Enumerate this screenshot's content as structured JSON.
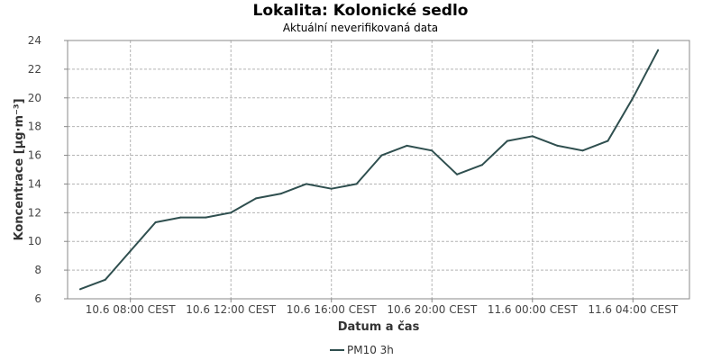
{
  "title": "Lokalita: Kolonické sedlo",
  "subtitle": "Aktuální neverifikovaná data",
  "colors": {
    "series": "#2f4f4f",
    "grid": "#b4b4b4",
    "axis": "#888888"
  },
  "chart_data": {
    "type": "line",
    "title": "Lokalita: Kolonické sedlo",
    "subtitle": "Aktuální neverifikovaná data",
    "xlabel": "Datum a čas",
    "ylabel": "Koncentrace [µg·m⁻³]",
    "ylim": [
      6,
      24
    ],
    "yticks": [
      6,
      8,
      10,
      12,
      14,
      16,
      18,
      20,
      22,
      24
    ],
    "xlim": [
      "2023-06-10 05:30",
      "2023-06-11 06:15"
    ],
    "xticks": [
      {
        "t": "2023-06-10 08:00",
        "label": "10.6 08:00 CEST"
      },
      {
        "t": "2023-06-10 12:00",
        "label": "10.6 12:00 CEST"
      },
      {
        "t": "2023-06-10 16:00",
        "label": "10.6 16:00 CEST"
      },
      {
        "t": "2023-06-10 20:00",
        "label": "10.6 20:00 CEST"
      },
      {
        "t": "2023-06-11 00:00",
        "label": "11.6 00:00 CEST"
      },
      {
        "t": "2023-06-11 04:00",
        "label": "11.6 04:00 CEST"
      }
    ],
    "grid": true,
    "legend_position": "bottom",
    "series": [
      {
        "name": "PM10 3h",
        "x": [
          "2023-06-10 06:00",
          "2023-06-10 07:00",
          "2023-06-10 08:00",
          "2023-06-10 09:00",
          "2023-06-10 10:00",
          "2023-06-10 11:00",
          "2023-06-10 12:00",
          "2023-06-10 13:00",
          "2023-06-10 14:00",
          "2023-06-10 15:00",
          "2023-06-10 16:00",
          "2023-06-10 17:00",
          "2023-06-10 18:00",
          "2023-06-10 19:00",
          "2023-06-10 20:00",
          "2023-06-10 21:00",
          "2023-06-10 22:00",
          "2023-06-10 23:00",
          "2023-06-11 00:00",
          "2023-06-11 01:00",
          "2023-06-11 02:00",
          "2023-06-11 03:00",
          "2023-06-11 04:00",
          "2023-06-11 05:00"
        ],
        "y": [
          6.67,
          7.33,
          9.33,
          11.33,
          11.67,
          11.67,
          12.0,
          13.0,
          13.33,
          14.0,
          13.67,
          14.0,
          16.0,
          16.67,
          16.33,
          14.67,
          15.33,
          17.0,
          17.33,
          16.67,
          16.33,
          17.0,
          20.0,
          23.33
        ]
      }
    ]
  }
}
